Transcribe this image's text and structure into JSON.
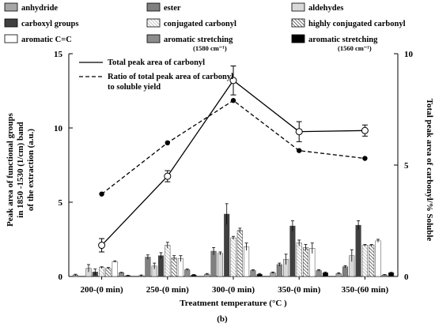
{
  "chart_data": {
    "type": "bar",
    "caption": "(b)",
    "xlabel": "Treatment temperature (°C )",
    "ylabel_left": [
      "Peak area of functional groups",
      "in 1850 -1530 (1/cm) band",
      "of the extraction (a.u.)"
    ],
    "ylabel_right": "Total peak area of carbonyl/% Soluble",
    "ylim_left": [
      0,
      15
    ],
    "ylim_right": [
      0,
      10
    ],
    "yticks_left": [
      "0",
      "5",
      "10",
      "15"
    ],
    "yticks_right": [
      "0",
      "5",
      "10"
    ],
    "categories": [
      "200-(0 min)",
      "250-(0 min)",
      "300-(0 min)",
      "350-(0 min)",
      "350-(60 min)"
    ],
    "series": [
      {
        "name": "anhydride",
        "color": "#a6a6a6",
        "pattern": "solid",
        "values": [
          0.1,
          0.05,
          0.15,
          0.25,
          0.2
        ],
        "errors": [
          0.05,
          0.05,
          0.05,
          0.05,
          0.05
        ]
      },
      {
        "name": "ester",
        "color": "#808080",
        "pattern": "solid",
        "values": [
          0.0,
          1.3,
          1.7,
          0.8,
          0.65
        ],
        "errors": [
          0.0,
          0.15,
          0.25,
          0.1,
          0.08
        ]
      },
      {
        "name": "aldehydes",
        "color": "#d9d9d9",
        "pattern": "solid",
        "values": [
          0.55,
          0.7,
          1.55,
          1.15,
          1.4
        ],
        "errors": [
          0.25,
          0.2,
          0.1,
          0.35,
          0.4
        ]
      },
      {
        "name": "carboxyl groups",
        "color": "#404040",
        "pattern": "solid",
        "values": [
          0.3,
          1.4,
          4.2,
          3.4,
          3.45
        ],
        "errors": [
          0.2,
          0.2,
          0.7,
          0.35,
          0.3
        ]
      },
      {
        "name": "conjugated carbonyl",
        "color": "#c8c8c8",
        "pattern": "light-hatch",
        "values": [
          0.6,
          2.1,
          2.6,
          2.25,
          2.1
        ],
        "errors": [
          0.05,
          0.2,
          0.1,
          0.2,
          0.05
        ]
      },
      {
        "name": "highly conjugated carbonyl",
        "color": "#ffffff",
        "pattern": "dense-hatch",
        "values": [
          0.55,
          1.25,
          3.1,
          1.95,
          2.1
        ],
        "errors": [
          0.05,
          0.15,
          0.15,
          0.2,
          0.05
        ]
      },
      {
        "name": "aromatic C=C",
        "color": "#ffffff",
        "pattern": "solid",
        "values": [
          1.0,
          1.2,
          2.0,
          1.9,
          2.4
        ],
        "errors": [
          0.05,
          0.2,
          0.25,
          0.35,
          0.1
        ]
      },
      {
        "name": "aromatic stretching",
        "subscript": "(1580 cm⁻¹)",
        "color": "#8c8c8c",
        "pattern": "solid",
        "values": [
          0.25,
          0.45,
          0.4,
          0.4,
          0.1
        ],
        "errors": [
          0.03,
          0.05,
          0.05,
          0.05,
          0.03
        ]
      },
      {
        "name": "aromatic stretching",
        "subscript": "(1560 cm⁻¹)",
        "color": "#000000",
        "pattern": "solid",
        "values": [
          0.05,
          0.1,
          0.15,
          0.25,
          0.25
        ],
        "errors": [
          0.03,
          0.03,
          0.05,
          0.05,
          0.03
        ]
      }
    ],
    "lines": [
      {
        "name": "Total peak area of carbonyl",
        "axis": "right",
        "style": "solid",
        "marker": "open-circle",
        "values": [
          1.4,
          4.5,
          8.8,
          6.5,
          6.55
        ],
        "errors": [
          0.3,
          0.25,
          0.65,
          0.45,
          0.25
        ]
      },
      {
        "name": "Ratio of total peak area of carbonyl",
        "name_line2": "to soluble yield",
        "axis": "right",
        "style": "dashed",
        "marker": "filled-circle",
        "values": [
          3.7,
          6.0,
          7.9,
          5.65,
          5.3
        ],
        "errors": [
          0,
          0,
          0,
          0,
          0
        ]
      }
    ]
  }
}
